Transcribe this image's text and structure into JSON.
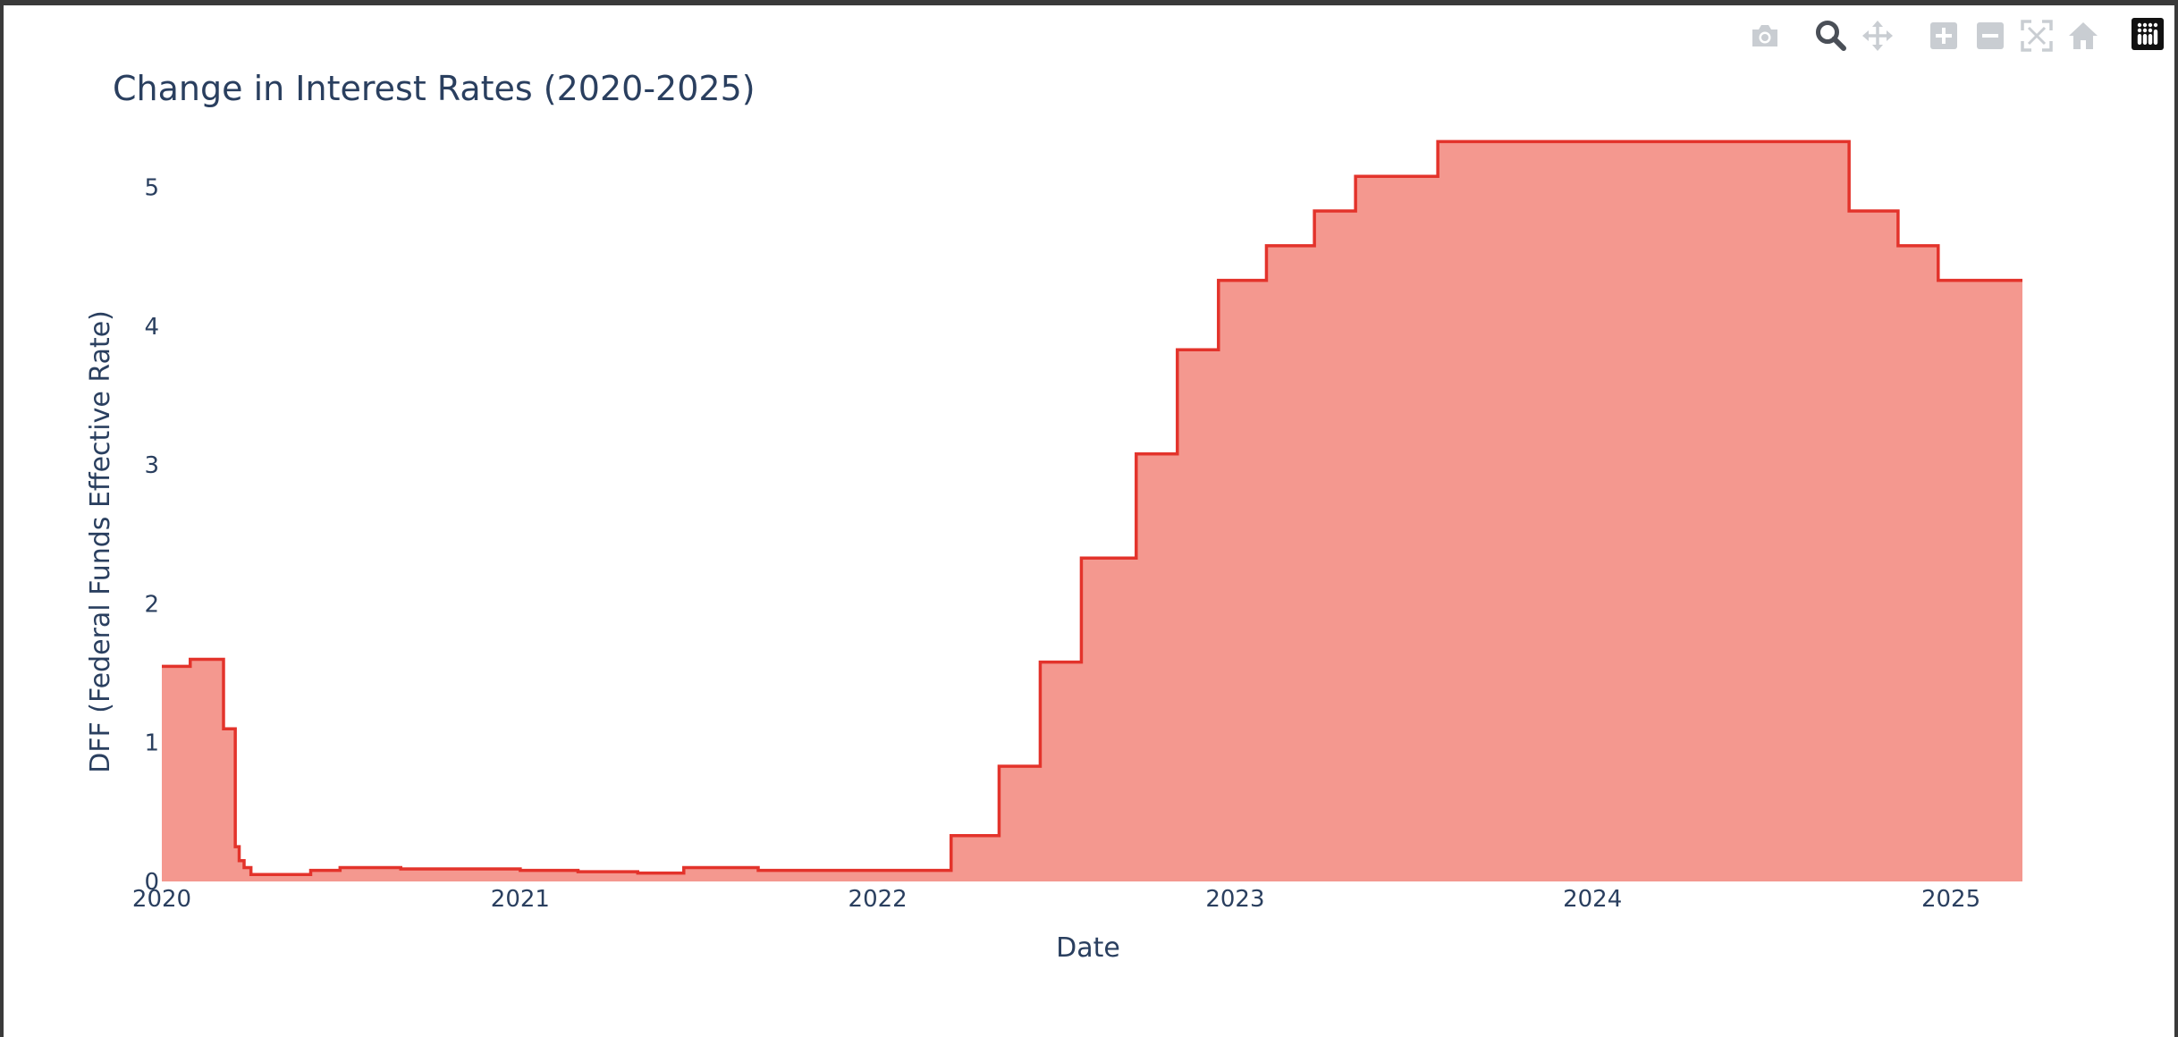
{
  "modebar": {
    "buttons": [
      {
        "name": "camera-icon",
        "title": "Download plot as a png"
      },
      {
        "name": "zoom-icon",
        "title": "Zoom"
      },
      {
        "name": "pan-icon",
        "title": "Pan"
      },
      {
        "name": "zoom-in-icon",
        "title": "Zoom in"
      },
      {
        "name": "zoom-out-icon",
        "title": "Zoom out"
      },
      {
        "name": "autoscale-icon",
        "title": "Autoscale"
      },
      {
        "name": "reset-axes-icon",
        "title": "Reset axes"
      }
    ],
    "active": "zoom-icon"
  },
  "colors": {
    "fill": "#f4988f",
    "line": "#e3332b",
    "text": "#2a3f5f"
  },
  "chart_data": {
    "type": "area",
    "title": "Change in Interest Rates (2020-2025)",
    "xlabel": "Date",
    "ylabel": "DFF (Federal Funds Effective Rate)",
    "xlim": [
      "2020-01-01",
      "2025-03-15"
    ],
    "ylim": [
      0,
      5.5
    ],
    "x_ticks": [
      "2020",
      "2021",
      "2022",
      "2023",
      "2024",
      "2025"
    ],
    "y_ticks": [
      "0",
      "1",
      "2",
      "3",
      "4",
      "5"
    ],
    "grid": false,
    "legend": "none",
    "line_shape": "step",
    "series": [
      {
        "points": [
          [
            "2020-01-01",
            1.55
          ],
          [
            "2020-01-30",
            1.6
          ],
          [
            "2020-03-04",
            1.1
          ],
          [
            "2020-03-16",
            0.25
          ],
          [
            "2020-03-20",
            0.15
          ],
          [
            "2020-03-25",
            0.1
          ],
          [
            "2020-04-01",
            0.05
          ],
          [
            "2020-06-01",
            0.08
          ],
          [
            "2020-07-01",
            0.1
          ],
          [
            "2020-09-01",
            0.09
          ],
          [
            "2021-01-01",
            0.08
          ],
          [
            "2021-03-01",
            0.07
          ],
          [
            "2021-05-01",
            0.06
          ],
          [
            "2021-06-17",
            0.1
          ],
          [
            "2021-09-01",
            0.08
          ],
          [
            "2022-03-17",
            0.33
          ],
          [
            "2022-05-05",
            0.83
          ],
          [
            "2022-06-16",
            1.58
          ],
          [
            "2022-07-28",
            2.33
          ],
          [
            "2022-09-22",
            3.08
          ],
          [
            "2022-11-03",
            3.83
          ],
          [
            "2022-12-15",
            4.33
          ],
          [
            "2023-02-02",
            4.58
          ],
          [
            "2023-03-23",
            4.83
          ],
          [
            "2023-05-04",
            5.08
          ],
          [
            "2023-07-27",
            5.33
          ],
          [
            "2024-09-19",
            4.83
          ],
          [
            "2024-11-08",
            4.58
          ],
          [
            "2024-12-19",
            4.33
          ],
          [
            "2025-03-15",
            4.33
          ]
        ]
      }
    ]
  }
}
